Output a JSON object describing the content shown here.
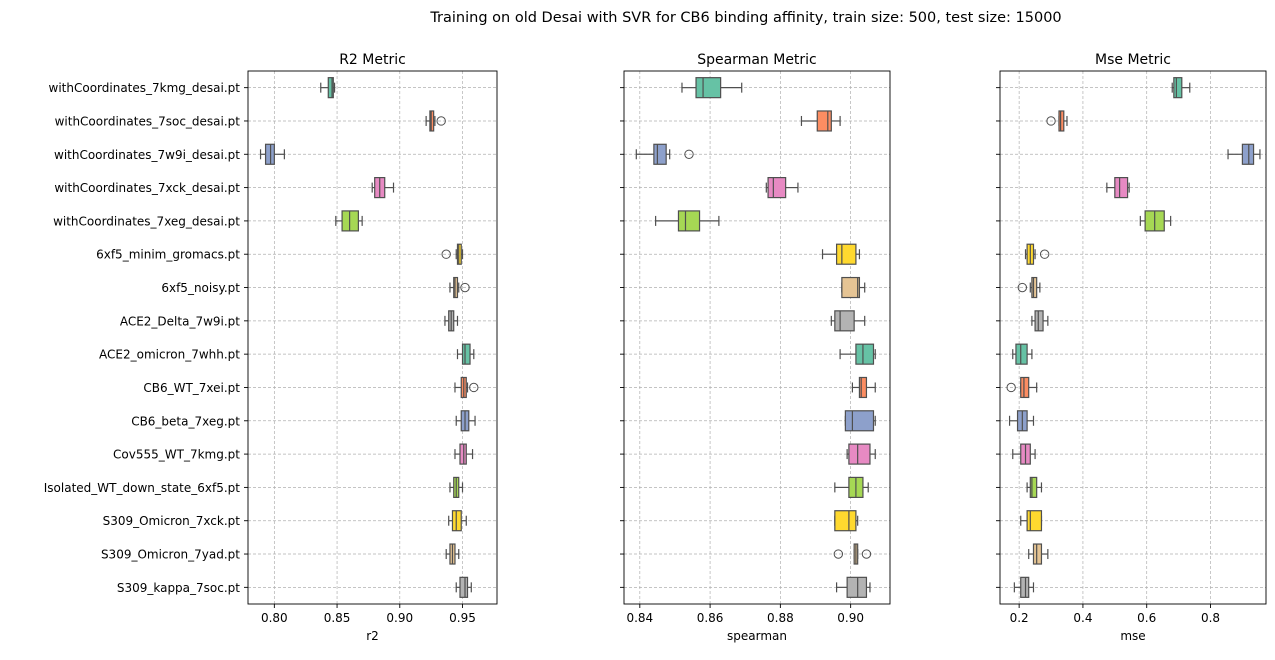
{
  "suptitle": "Training on old Desai with SVR for CB6 binding affinity, train size: 500, test size: 15000",
  "categories": [
    "withCoordinates_7kmg_desai.pt",
    "withCoordinates_7soc_desai.pt",
    "withCoordinates_7w9i_desai.pt",
    "withCoordinates_7xck_desai.pt",
    "withCoordinates_7xeg_desai.pt",
    "6xf5_minim_gromacs.pt",
    "6xf5_noisy.pt",
    "ACE2_Delta_7w9i.pt",
    "ACE2_omicron_7whh.pt",
    "CB6_WT_7xei.pt",
    "CB6_beta_7xeg.pt",
    "Cov555_WT_7kmg.pt",
    "Isolated_WT_down_state_6xf5.pt",
    "S309_Omicron_7xck.pt",
    "S309_Omicron_7yad.pt",
    "S309_kappa_7soc.pt"
  ],
  "colors": [
    "#66c2a5",
    "#fc8d62",
    "#8da0cb",
    "#e78ac3",
    "#a6d854",
    "#ffd92f",
    "#e5c494",
    "#b3b3b3"
  ],
  "chart_data": [
    {
      "type": "box",
      "title": "R2 Metric",
      "xlabel": "r2",
      "xlim": [
        0.779,
        0.9775
      ],
      "xticks": [
        0.8,
        0.85,
        0.9,
        0.95
      ],
      "xtick_labels": [
        "0.80",
        "0.85",
        "0.90",
        "0.95"
      ],
      "grid": true,
      "boxes": [
        {
          "whislo": 0.837,
          "q1": 0.843,
          "med": 0.846,
          "q3": 0.847,
          "whishi": 0.848,
          "fliers": []
        },
        {
          "whislo": 0.921,
          "q1": 0.924,
          "med": 0.925,
          "q3": 0.927,
          "whishi": 0.928,
          "fliers": [
            0.933
          ]
        },
        {
          "whislo": 0.789,
          "q1": 0.793,
          "med": 0.797,
          "q3": 0.8,
          "whishi": 0.808,
          "fliers": []
        },
        {
          "whislo": 0.878,
          "q1": 0.88,
          "med": 0.884,
          "q3": 0.888,
          "whishi": 0.895,
          "fliers": []
        },
        {
          "whislo": 0.849,
          "q1": 0.854,
          "med": 0.86,
          "q3": 0.867,
          "whishi": 0.87,
          "fliers": []
        },
        {
          "whislo": 0.945,
          "q1": 0.946,
          "med": 0.947,
          "q3": 0.949,
          "whishi": 0.95,
          "fliers": [
            0.937
          ]
        },
        {
          "whislo": 0.94,
          "q1": 0.943,
          "med": 0.944,
          "q3": 0.946,
          "whishi": 0.947,
          "fliers": [
            0.952
          ]
        },
        {
          "whislo": 0.936,
          "q1": 0.939,
          "med": 0.941,
          "q3": 0.943,
          "whishi": 0.946,
          "fliers": []
        },
        {
          "whislo": 0.946,
          "q1": 0.95,
          "med": 0.952,
          "q3": 0.956,
          "whishi": 0.959,
          "fliers": []
        },
        {
          "whislo": 0.944,
          "q1": 0.949,
          "med": 0.951,
          "q3": 0.953,
          "whishi": 0.954,
          "fliers": [
            0.959
          ]
        },
        {
          "whislo": 0.945,
          "q1": 0.949,
          "med": 0.952,
          "q3": 0.955,
          "whishi": 0.96,
          "fliers": []
        },
        {
          "whislo": 0.944,
          "q1": 0.948,
          "med": 0.951,
          "q3": 0.953,
          "whishi": 0.958,
          "fliers": []
        },
        {
          "whislo": 0.94,
          "q1": 0.943,
          "med": 0.945,
          "q3": 0.947,
          "whishi": 0.95,
          "fliers": []
        },
        {
          "whislo": 0.939,
          "q1": 0.942,
          "med": 0.945,
          "q3": 0.949,
          "whishi": 0.953,
          "fliers": []
        },
        {
          "whislo": 0.937,
          "q1": 0.94,
          "med": 0.942,
          "q3": 0.944,
          "whishi": 0.947,
          "fliers": []
        },
        {
          "whislo": 0.945,
          "q1": 0.948,
          "med": 0.952,
          "q3": 0.954,
          "whishi": 0.957,
          "fliers": []
        }
      ]
    },
    {
      "type": "box",
      "title": "Spearman Metric",
      "xlabel": "spearman",
      "xlim": [
        0.8355,
        0.9112
      ],
      "xticks": [
        0.84,
        0.86,
        0.88,
        0.9
      ],
      "xtick_labels": [
        "0.84",
        "0.86",
        "0.88",
        "0.90"
      ],
      "grid": true,
      "boxes": [
        {
          "whislo": 0.852,
          "q1": 0.856,
          "med": 0.858,
          "q3": 0.863,
          "whishi": 0.869,
          "fliers": []
        },
        {
          "whislo": 0.886,
          "q1": 0.8905,
          "med": 0.8935,
          "q3": 0.8945,
          "whishi": 0.897,
          "fliers": []
        },
        {
          "whislo": 0.839,
          "q1": 0.844,
          "med": 0.845,
          "q3": 0.8475,
          "whishi": 0.8485,
          "fliers": [
            0.854
          ]
        },
        {
          "whislo": 0.876,
          "q1": 0.8765,
          "med": 0.878,
          "q3": 0.8815,
          "whishi": 0.885,
          "fliers": []
        },
        {
          "whislo": 0.8445,
          "q1": 0.851,
          "med": 0.853,
          "q3": 0.857,
          "whishi": 0.8625,
          "fliers": []
        },
        {
          "whislo": 0.892,
          "q1": 0.896,
          "med": 0.8975,
          "q3": 0.9015,
          "whishi": 0.9025,
          "fliers": []
        },
        {
          "whislo": 0.8975,
          "q1": 0.8975,
          "med": 0.902,
          "q3": 0.9025,
          "whishi": 0.904,
          "fliers": []
        },
        {
          "whislo": 0.8945,
          "q1": 0.8955,
          "med": 0.897,
          "q3": 0.901,
          "whishi": 0.904,
          "fliers": []
        },
        {
          "whislo": 0.897,
          "q1": 0.9015,
          "med": 0.9035,
          "q3": 0.9065,
          "whishi": 0.907,
          "fliers": []
        },
        {
          "whislo": 0.9005,
          "q1": 0.9025,
          "med": 0.903,
          "q3": 0.9045,
          "whishi": 0.907,
          "fliers": []
        },
        {
          "whislo": 0.8985,
          "q1": 0.8985,
          "med": 0.9005,
          "q3": 0.9065,
          "whishi": 0.907,
          "fliers": []
        },
        {
          "whislo": 0.899,
          "q1": 0.8995,
          "med": 0.902,
          "q3": 0.9055,
          "whishi": 0.907,
          "fliers": []
        },
        {
          "whislo": 0.8955,
          "q1": 0.8995,
          "med": 0.9015,
          "q3": 0.9035,
          "whishi": 0.905,
          "fliers": []
        },
        {
          "whislo": 0.8955,
          "q1": 0.8955,
          "med": 0.8995,
          "q3": 0.9015,
          "whishi": 0.902,
          "fliers": []
        },
        {
          "whislo": 0.901,
          "q1": 0.901,
          "med": 0.9015,
          "q3": 0.902,
          "whishi": 0.902,
          "fliers": [
            0.8965,
            0.9045
          ]
        },
        {
          "whislo": 0.896,
          "q1": 0.899,
          "med": 0.902,
          "q3": 0.9045,
          "whishi": 0.9055,
          "fliers": []
        }
      ]
    },
    {
      "type": "box",
      "title": "Mse Metric",
      "xlabel": "mse",
      "xlim": [
        0.14,
        0.974
      ],
      "xticks": [
        0.2,
        0.4,
        0.6,
        0.8
      ],
      "xtick_labels": [
        "0.2",
        "0.4",
        "0.6",
        "0.8"
      ],
      "grid": true,
      "boxes": [
        {
          "whislo": 0.68,
          "q1": 0.685,
          "med": 0.693,
          "q3": 0.71,
          "whishi": 0.735,
          "fliers": []
        },
        {
          "whislo": 0.325,
          "q1": 0.325,
          "med": 0.33,
          "q3": 0.34,
          "whishi": 0.35,
          "fliers": [
            0.3
          ]
        },
        {
          "whislo": 0.855,
          "q1": 0.9,
          "med": 0.92,
          "q3": 0.935,
          "whishi": 0.955,
          "fliers": []
        },
        {
          "whislo": 0.475,
          "q1": 0.5,
          "med": 0.515,
          "q3": 0.54,
          "whishi": 0.545,
          "fliers": []
        },
        {
          "whislo": 0.58,
          "q1": 0.595,
          "med": 0.625,
          "q3": 0.655,
          "whishi": 0.675,
          "fliers": []
        },
        {
          "whislo": 0.22,
          "q1": 0.225,
          "med": 0.235,
          "q3": 0.245,
          "whishi": 0.25,
          "fliers": [
            0.28
          ]
        },
        {
          "whislo": 0.235,
          "q1": 0.24,
          "med": 0.245,
          "q3": 0.255,
          "whishi": 0.265,
          "fliers": [
            0.21
          ]
        },
        {
          "whislo": 0.24,
          "q1": 0.25,
          "med": 0.26,
          "q3": 0.275,
          "whishi": 0.29,
          "fliers": []
        },
        {
          "whislo": 0.18,
          "q1": 0.19,
          "med": 0.205,
          "q3": 0.225,
          "whishi": 0.24,
          "fliers": []
        },
        {
          "whislo": 0.205,
          "q1": 0.205,
          "med": 0.215,
          "q3": 0.23,
          "whishi": 0.255,
          "fliers": [
            0.175
          ]
        },
        {
          "whislo": 0.17,
          "q1": 0.195,
          "med": 0.21,
          "q3": 0.225,
          "whishi": 0.245,
          "fliers": []
        },
        {
          "whislo": 0.18,
          "q1": 0.205,
          "med": 0.22,
          "q3": 0.235,
          "whishi": 0.25,
          "fliers": []
        },
        {
          "whislo": 0.225,
          "q1": 0.235,
          "med": 0.24,
          "q3": 0.255,
          "whishi": 0.27,
          "fliers": []
        },
        {
          "whislo": 0.205,
          "q1": 0.225,
          "med": 0.235,
          "q3": 0.27,
          "whishi": 0.27,
          "fliers": []
        },
        {
          "whislo": 0.23,
          "q1": 0.245,
          "med": 0.255,
          "q3": 0.27,
          "whishi": 0.29,
          "fliers": []
        },
        {
          "whislo": 0.185,
          "q1": 0.205,
          "med": 0.22,
          "q3": 0.23,
          "whishi": 0.245,
          "fliers": []
        }
      ]
    }
  ]
}
